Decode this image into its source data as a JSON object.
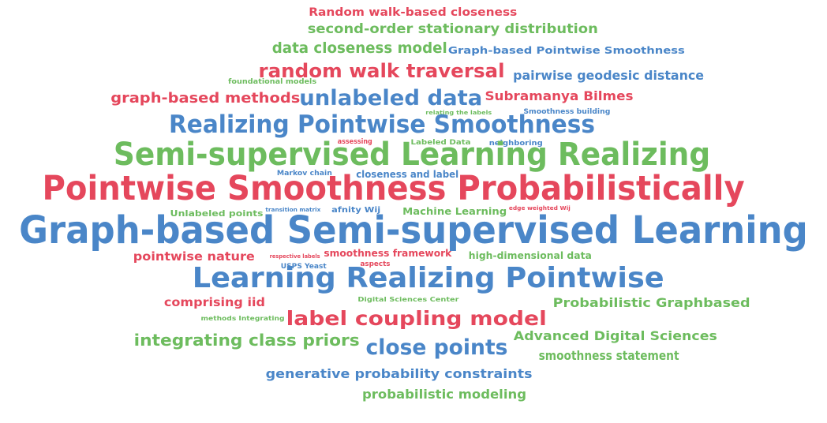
{
  "colors": {
    "red": "#e5475c",
    "green": "#6dbc5e",
    "blue": "#4a86c8"
  },
  "words": [
    {
      "text": "Random walk-based closeness",
      "color": "red"
    },
    {
      "text": "second-order stationary distribution",
      "color": "green"
    },
    {
      "text": "data closeness model",
      "color": "green"
    },
    {
      "text": "Graph-based Pointwise Smoothness",
      "color": "blue"
    },
    {
      "text": "random walk traversal",
      "color": "red"
    },
    {
      "text": "foundational models",
      "color": "green"
    },
    {
      "text": "pairwise geodesic distance",
      "color": "blue"
    },
    {
      "text": "graph-based methods",
      "color": "red"
    },
    {
      "text": "unlabeled data",
      "color": "blue"
    },
    {
      "text": "Subramanya Bilmes",
      "color": "red"
    },
    {
      "text": "relating the labels",
      "color": "green"
    },
    {
      "text": "Smoothness building",
      "color": "blue"
    },
    {
      "text": "Realizing Pointwise Smoothness",
      "color": "blue"
    },
    {
      "text": "assessing",
      "color": "red"
    },
    {
      "text": "Labeled Data",
      "color": "green"
    },
    {
      "text": "neighboring",
      "color": "blue"
    },
    {
      "text": "Semi-supervised Learning Realizing",
      "color": "green"
    },
    {
      "text": "Markov chain",
      "color": "blue"
    },
    {
      "text": "closeness and label",
      "color": "blue"
    },
    {
      "text": "Pointwise Smoothness Probabilistically",
      "color": "red"
    },
    {
      "text": "Unlabeled points",
      "color": "green"
    },
    {
      "text": "transition matrix",
      "color": "blue"
    },
    {
      "text": "afnity Wij",
      "color": "blue"
    },
    {
      "text": "Machine Learning",
      "color": "green"
    },
    {
      "text": "edge weighted Wij",
      "color": "red"
    },
    {
      "text": "Graph-based Semi-supervised Learning",
      "color": "blue"
    },
    {
      "text": "pointwise nature",
      "color": "red"
    },
    {
      "text": "respective labels",
      "color": "red"
    },
    {
      "text": "smoothness framework",
      "color": "red"
    },
    {
      "text": "high-dimensional data",
      "color": "green"
    },
    {
      "text": "USPS Yeast",
      "color": "blue"
    },
    {
      "text": "aspects",
      "color": "red"
    },
    {
      "text": "Learning Realizing Pointwise",
      "color": "blue"
    },
    {
      "text": "comprising iid",
      "color": "red"
    },
    {
      "text": "Digital Sciences Center",
      "color": "green"
    },
    {
      "text": "Probabilistic Graphbased",
      "color": "green"
    },
    {
      "text": "methods Integrating",
      "color": "green"
    },
    {
      "text": "label coupling model",
      "color": "red"
    },
    {
      "text": "integrating class priors",
      "color": "green"
    },
    {
      "text": "close points",
      "color": "blue"
    },
    {
      "text": "Advanced Digital Sciences",
      "color": "green"
    },
    {
      "text": "smoothness statement",
      "color": "green"
    },
    {
      "text": "generative probability constraints",
      "color": "blue"
    },
    {
      "text": "probabilistic modeling",
      "color": "green"
    }
  ]
}
